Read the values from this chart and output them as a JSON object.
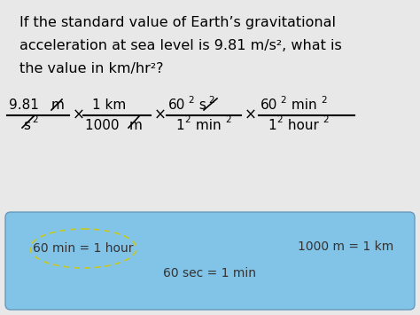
{
  "bg_color": "#e8e8e8",
  "title_lines": [
    "If the standard value of Earth’s gravitational",
    "acceleration at sea level is 9.81 m/s², what is",
    "the value in km/hr²?"
  ],
  "box_face": "#82c4e8",
  "box_edge": "#6699bb",
  "ellipse_color": "#c8c820",
  "hint1": "60 min = 1 hour",
  "hint2": "60 sec = 1 min",
  "hint3": "1000 m = 1 km",
  "title_fontsize": 11.5,
  "eq_fontsize": 11,
  "eq_sup_fontsize": 7.5,
  "hint_fontsize": 10
}
